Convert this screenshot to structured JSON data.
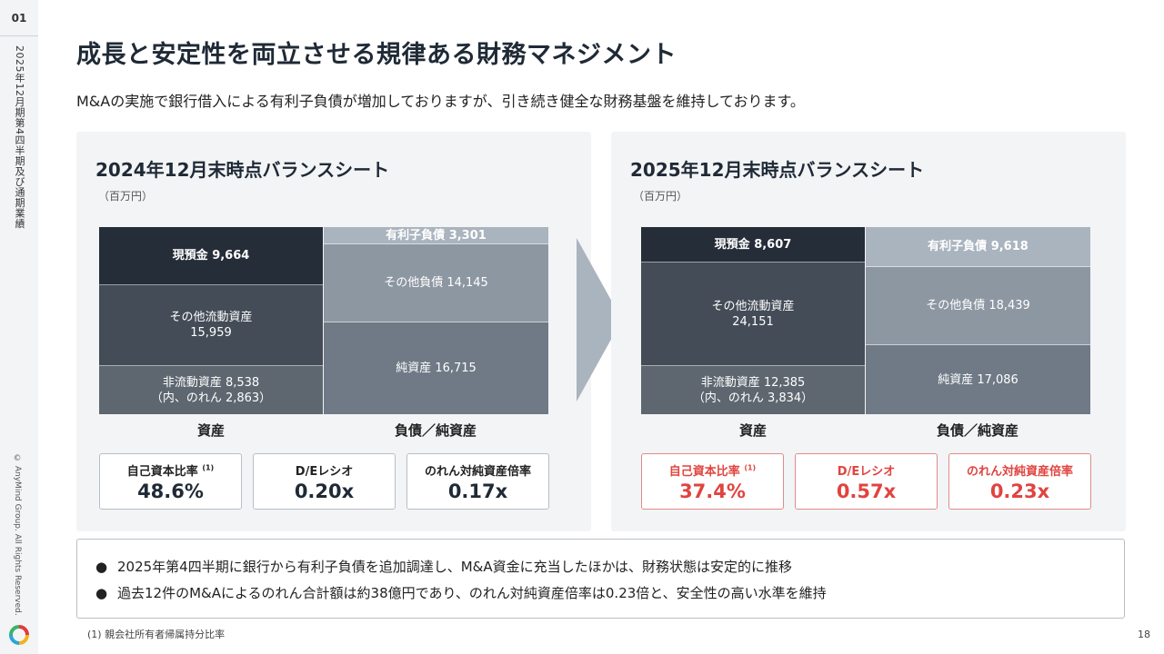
{
  "page_tag": "01",
  "rail_title": "2025年12月期第4四半期及び通期業績",
  "copyright": "© AnyMind Group. All Rights Reserved.",
  "title": "成長と安定性を両立させる規律ある財務マネジメント",
  "subtitle": "M&Aの実施で銀行借入による有利子負債が増加しておりますが、引き続き健全な財務基盤を維持しております。",
  "colors": {
    "dark": "#252d38",
    "mid_dark": "#434c57",
    "mid": "#5e6770",
    "liab_light": "#aab4bf",
    "liab_mid": "#8d97a2",
    "equity": "#6f7a86",
    "highlight_red": "#e0443f"
  },
  "left": {
    "title": "2024年12月末時点バランスシート",
    "unit": "（百万円）",
    "assets": [
      {
        "label": "現預金 9,664",
        "value": 9664
      },
      {
        "label": "その他流動資産",
        "sub": "15,959",
        "value": 15959
      },
      {
        "label": "非流動資産 8,538",
        "sub": "（内、のれん 2,863）",
        "value": 8538
      }
    ],
    "liabilities": [
      {
        "label": "有利子負債 3,301",
        "value": 3301
      },
      {
        "label": "その他負債 14,145",
        "value": 14145
      },
      {
        "label": "純資産 16,715",
        "value": 16715
      }
    ],
    "assets_label": "資産",
    "liab_label": "負債／純資産",
    "kpis": [
      {
        "label": "自己資本比率",
        "note": "(1)",
        "value": "48.6%"
      },
      {
        "label": "D/Eレシオ",
        "value": "0.20x"
      },
      {
        "label": "のれん対純資産倍率",
        "value": "0.17x"
      }
    ]
  },
  "right": {
    "title": "2025年12月末時点バランスシート",
    "unit": "（百万円）",
    "assets": [
      {
        "label": "現預金 8,607",
        "value": 8607
      },
      {
        "label": "その他流動資産",
        "sub": "24,151",
        "value": 24151
      },
      {
        "label": "非流動資産 12,385",
        "sub": "（内、のれん 3,834）",
        "value": 12385
      }
    ],
    "liabilities": [
      {
        "label": "有利子負債 9,618",
        "value": 9618
      },
      {
        "label": "その他負債 18,439",
        "value": 18439
      },
      {
        "label": "純資産 17,086",
        "value": 17086
      }
    ],
    "assets_label": "資産",
    "liab_label": "負債／純資産",
    "kpis": [
      {
        "label": "自己資本比率",
        "note": "(1)",
        "value": "37.4%"
      },
      {
        "label": "D/Eレシオ",
        "value": "0.57x"
      },
      {
        "label": "のれん対純資産倍率",
        "value": "0.23x"
      }
    ]
  },
  "notes": {
    "bullet": "●",
    "items": [
      "2025年第4四半期に銀行から有利子負債を追加調達し、M&A資金に充当したほかは、財務状態は安定的に推移",
      "過去12件のM&Aによるのれん合計額は約38億円であり、のれん対純資産倍率は0.23倍と、安全性の高い水準を維持"
    ]
  },
  "footnote": "(1) 親会社所有者帰属持分比率",
  "page_number": "18"
}
